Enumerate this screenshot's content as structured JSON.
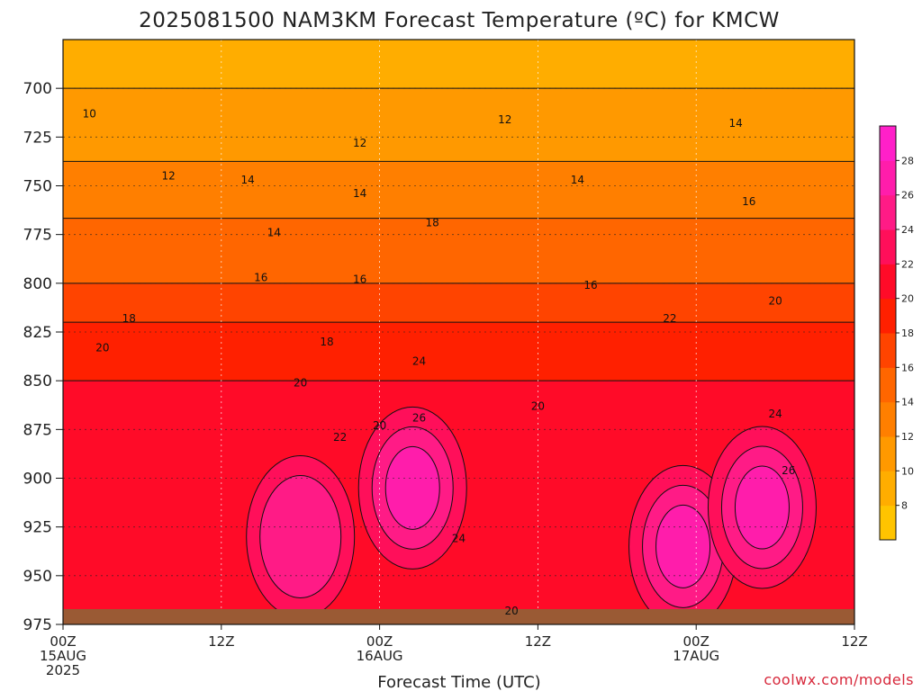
{
  "chart_data": {
    "type": "heatmap",
    "title": "2025081500 NAM3KM Forecast Temperature (ºC) for KMCW",
    "xlabel": "Forecast Time (UTC)",
    "ylabel": "",
    "credit": "coolwx.com/models",
    "y_axis": {
      "scale": "pressure (reversed)",
      "ylim": [
        975,
        675
      ],
      "ticks": [
        700,
        725,
        750,
        775,
        800,
        825,
        850,
        875,
        900,
        925,
        950,
        975
      ]
    },
    "x_axis": {
      "xlim_hours": [
        0,
        60
      ],
      "ticks": [
        {
          "hour": 0,
          "lines": [
            "00Z",
            "15AUG",
            "2025"
          ]
        },
        {
          "hour": 12,
          "lines": [
            "12Z"
          ]
        },
        {
          "hour": 24,
          "lines": [
            "00Z",
            "16AUG"
          ]
        },
        {
          "hour": 36,
          "lines": [
            "12Z"
          ]
        },
        {
          "hour": 48,
          "lines": [
            "00Z",
            "17AUG"
          ]
        },
        {
          "hour": 60,
          "lines": [
            "12Z"
          ]
        }
      ]
    },
    "grid": true,
    "colorbar": {
      "levels": [
        6,
        8,
        10,
        12,
        14,
        16,
        18,
        20,
        22,
        24,
        26,
        28,
        30
      ],
      "tick_labels": [
        "8",
        "10",
        "12",
        "14",
        "16",
        "18",
        "20",
        "22",
        "24",
        "26",
        "28"
      ],
      "colors": [
        "#ffc400",
        "#ffad00",
        "#ff9900",
        "#ff7f00",
        "#ff6600",
        "#ff4400",
        "#ff2000",
        "#ff0b28",
        "#ff0f5a",
        "#ff1b86",
        "#ff1dab",
        "#ff20c9"
      ]
    },
    "temperature_profile_at_00Z_15AUG": [
      {
        "pressure": 680,
        "temp": 9
      },
      {
        "pressure": 700,
        "temp": 10
      },
      {
        "pressure": 725,
        "temp": 11
      },
      {
        "pressure": 750,
        "temp": 13
      },
      {
        "pressure": 775,
        "temp": 14.5
      },
      {
        "pressure": 800,
        "temp": 16
      },
      {
        "pressure": 825,
        "temp": 18.5
      },
      {
        "pressure": 850,
        "temp": 20
      },
      {
        "pressure": 875,
        "temp": 21
      },
      {
        "pressure": 900,
        "temp": 21.5
      },
      {
        "pressure": 925,
        "temp": 21.5
      },
      {
        "pressure": 950,
        "temp": 21.5
      },
      {
        "pressure": 975,
        "temp": 21.5
      }
    ],
    "warm_cores": [
      {
        "hour": 26.5,
        "pressure": 905,
        "temp": 26
      },
      {
        "hour": 47,
        "pressure": 935,
        "temp": 26
      },
      {
        "hour": 53,
        "pressure": 915,
        "temp": 27
      },
      {
        "hour": 18,
        "pressure": 930,
        "temp": 24
      }
    ],
    "contour_labels": [
      {
        "text": "10",
        "hour": 2,
        "pressure": 713
      },
      {
        "text": "12",
        "hour": 8,
        "pressure": 745
      },
      {
        "text": "12",
        "hour": 22.5,
        "pressure": 728
      },
      {
        "text": "12",
        "hour": 33.5,
        "pressure": 716
      },
      {
        "text": "14",
        "hour": 14,
        "pressure": 747
      },
      {
        "text": "14",
        "hour": 16,
        "pressure": 774
      },
      {
        "text": "14",
        "hour": 22.5,
        "pressure": 754
      },
      {
        "text": "14",
        "hour": 39,
        "pressure": 747
      },
      {
        "text": "14",
        "hour": 51,
        "pressure": 718
      },
      {
        "text": "16",
        "hour": 15,
        "pressure": 797
      },
      {
        "text": "16",
        "hour": 22.5,
        "pressure": 798
      },
      {
        "text": "16",
        "hour": 40,
        "pressure": 801
      },
      {
        "text": "16",
        "hour": 52,
        "pressure": 758
      },
      {
        "text": "18",
        "hour": 5,
        "pressure": 818
      },
      {
        "text": "18",
        "hour": 20,
        "pressure": 830
      },
      {
        "text": "18",
        "hour": 28,
        "pressure": 769
      },
      {
        "text": "20",
        "hour": 3,
        "pressure": 833
      },
      {
        "text": "20",
        "hour": 18,
        "pressure": 851
      },
      {
        "text": "20",
        "hour": 24,
        "pressure": 873
      },
      {
        "text": "20",
        "hour": 36,
        "pressure": 863
      },
      {
        "text": "20",
        "hour": 34,
        "pressure": 968
      },
      {
        "text": "20",
        "hour": 54,
        "pressure": 809
      },
      {
        "text": "22",
        "hour": 21,
        "pressure": 879
      },
      {
        "text": "22",
        "hour": 46,
        "pressure": 818
      },
      {
        "text": "24",
        "hour": 27,
        "pressure": 840
      },
      {
        "text": "24",
        "hour": 30,
        "pressure": 931
      },
      {
        "text": "24",
        "hour": 54,
        "pressure": 867
      },
      {
        "text": "26",
        "hour": 27,
        "pressure": 869
      },
      {
        "text": "26",
        "hour": 55,
        "pressure": 896
      }
    ]
  }
}
